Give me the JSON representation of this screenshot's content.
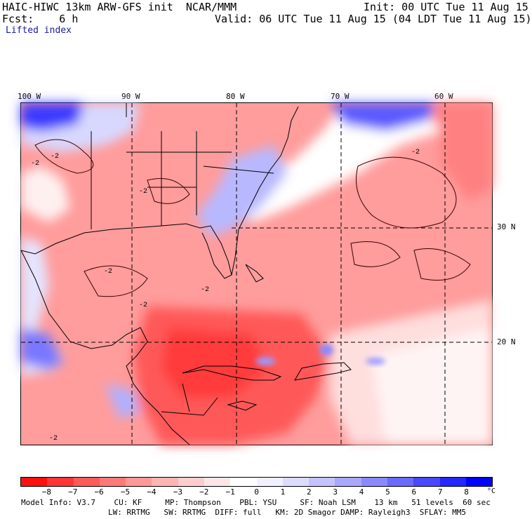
{
  "header": {
    "model_line": "HAIC-HIWC 13km ARW-GFS init  NCAR/MMM",
    "init_line": "Init: 00 UTC Tue 11 Aug 15",
    "fcst_line": "Fcst:    6 h",
    "valid_line": "Valid: 06 UTC Tue 11 Aug 15 (04 LDT Tue 11 Aug 15)",
    "field_name": "Lifted index"
  },
  "map": {
    "longitude_labels": [
      "100 W",
      "90 W",
      "80 W",
      "70 W",
      "60 W"
    ],
    "latitude_labels": [
      "30 N",
      "20 N"
    ],
    "contour_labels": [
      "-2",
      "-2",
      "-2",
      "-2",
      "-2",
      "-2",
      "-2",
      "-2"
    ]
  },
  "colorbar": {
    "colors": [
      "#ff1010",
      "#ff3535",
      "#ff5a5a",
      "#ff7878",
      "#ff9898",
      "#ffb4b4",
      "#ffcdcd",
      "#ffe6e6",
      "#ffffff",
      "#f0f0ff",
      "#dcdcff",
      "#c3c3ff",
      "#a8a8ff",
      "#8a8aff",
      "#6a6aff",
      "#4848ff",
      "#2626ff",
      "#0000ff"
    ],
    "tick_labels": [
      "−8",
      "−7",
      "−6",
      "−5",
      "−4",
      "−3",
      "−2",
      "−1",
      "0",
      "1",
      "2",
      "3",
      "4",
      "5",
      "6",
      "7",
      "8"
    ],
    "unit": "°C"
  },
  "footer": {
    "line1": "Model Info: V3.7    CU: KF     MP: Thompson    PBL: YSU     SF: Noah LSM    13 km   51 levels  60 sec",
    "line2": "LW: RRTMG   SW: RRTMG  DIFF: full   KM: 2D Smagor DAMP: Rayleigh3  SFLAY: MM5"
  }
}
